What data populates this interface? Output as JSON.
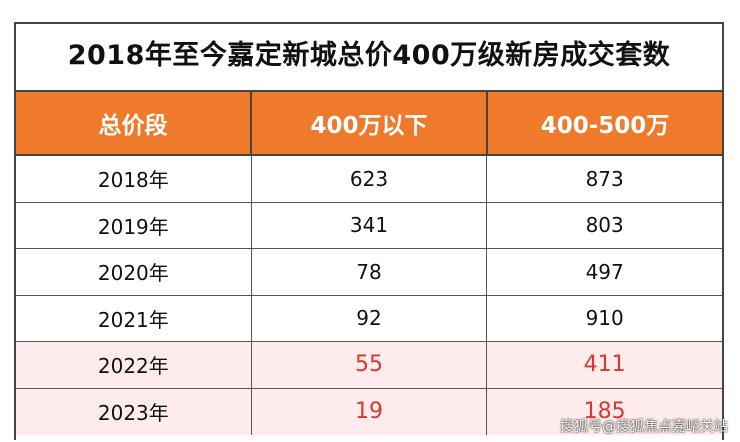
{
  "title": "2018年至今嘉定新城总价400万级新房成交套数",
  "table": {
    "header": [
      "总价段",
      "400万以下",
      "400-500万"
    ],
    "rows": [
      [
        "2018年",
        623,
        873
      ],
      [
        "2019年",
        341,
        803
      ],
      [
        "2020年",
        78,
        497
      ],
      [
        "2021年",
        92,
        910
      ],
      [
        "2022年",
        55,
        411
      ],
      [
        "2023年",
        19,
        185
      ]
    ]
  },
  "watermark": "搜狐号@搜狐焦点嘉峪关站"
}
